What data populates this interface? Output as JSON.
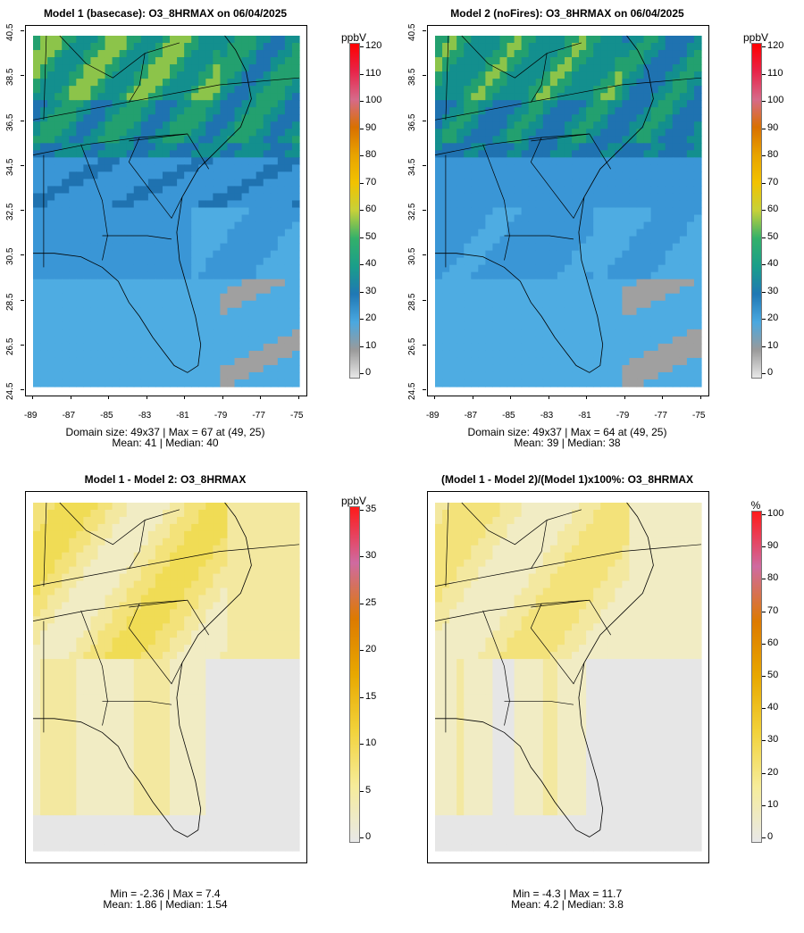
{
  "panels": [
    {
      "title": "Model 1 (basecase): O3_8HRMAX on 06/04/2025",
      "unit": "ppbV",
      "scale": "conc",
      "colorbar_ticks": [
        "120",
        "110",
        "100",
        "90",
        "80",
        "70",
        "60",
        "50",
        "40",
        "30",
        "20",
        "10",
        "0"
      ],
      "xticks": [
        "-89",
        "-87",
        "-85",
        "-83",
        "-81",
        "-79",
        "-77",
        "-75"
      ],
      "yticks": [
        "40.5",
        "38.5",
        "36.5",
        "34.5",
        "32.5",
        "30.5",
        "28.5",
        "26.5",
        "24.5"
      ],
      "stats1": "Domain size: 49x37 | Max = 67 at (49, 25)",
      "stats2": "Mean: 41 |  Median: 40"
    },
    {
      "title": "Model 2 (noFires): O3_8HRMAX on 06/04/2025",
      "unit": "ppbV",
      "scale": "conc",
      "colorbar_ticks": [
        "120",
        "110",
        "100",
        "90",
        "80",
        "70",
        "60",
        "50",
        "40",
        "30",
        "20",
        "10",
        "0"
      ],
      "xticks": [
        "-89",
        "-87",
        "-85",
        "-83",
        "-81",
        "-79",
        "-77",
        "-75"
      ],
      "yticks": [
        "40.5",
        "38.5",
        "36.5",
        "34.5",
        "32.5",
        "30.5",
        "28.5",
        "26.5",
        "24.5"
      ],
      "stats1": "Domain size: 49x37 | Max = 64 at (49, 25)",
      "stats2": "Mean: 39 |  Median: 38"
    },
    {
      "title": "Model 1 - Model 2: O3_8HRMAX",
      "unit": "ppbV",
      "scale": "diff",
      "colorbar_ticks": [
        "35",
        "30",
        "25",
        "20",
        "15",
        "10",
        "5",
        "0"
      ],
      "stats1": "Min = -2.36 | Max = 7.4",
      "stats2": "Mean: 1.86 |  Median: 1.54"
    },
    {
      "title": "(Model 1 - Model 2)/(Model 1)x100%: O3_8HRMAX",
      "unit": "%",
      "scale": "pct",
      "colorbar_ticks": [
        "100",
        "90",
        "80",
        "70",
        "60",
        "50",
        "40",
        "30",
        "20",
        "10",
        "0"
      ],
      "stats1": "Min = -4.3 | Max = 11.7",
      "stats2": "Mean: 4.2 |  Median: 3.8"
    }
  ],
  "colors": {
    "conc": [
      "#e8e8e8",
      "#9a9a9a",
      "#4aa8e0",
      "#1f78b4",
      "#1a9e8a",
      "#33b06a",
      "#c6d13a",
      "#f2c200",
      "#e8a300",
      "#d97000",
      "#d66a8a",
      "#e8254a",
      "#ff0000"
    ],
    "diff": [
      "#e8e8e8",
      "#f6ec9a",
      "#f2d23a",
      "#e8a800",
      "#dd7a00",
      "#cf6aa0",
      "#ff1a1a"
    ],
    "pct": [
      "#e8e8e8",
      "#f6ec9a",
      "#f2d23a",
      "#e8a800",
      "#dd7a00",
      "#cf6aa0",
      "#ff1a1a"
    ]
  }
}
